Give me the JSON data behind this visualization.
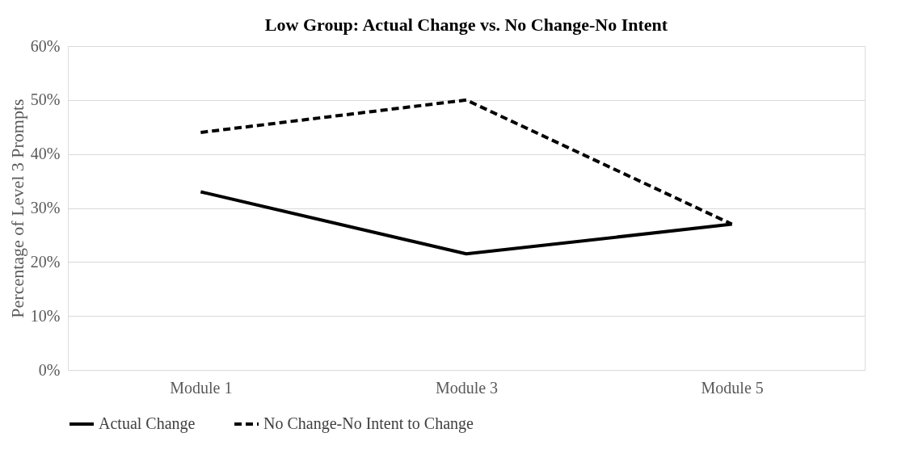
{
  "chart_data": {
    "type": "line",
    "title": "Low Group: Actual Change vs. No Change-No Intent",
    "ylabel": "Percentage of Level 3 Prompts",
    "categories": [
      "Module 1",
      "Module 3",
      "Module 5"
    ],
    "series": [
      {
        "name": "Actual Change",
        "color": "#000000",
        "line_style": "solid",
        "values": [
          33,
          21.5,
          27
        ]
      },
      {
        "name": "No Change-No Intent to Change",
        "color": "#000000",
        "line_style": "dashed",
        "values": [
          44,
          50,
          27
        ]
      }
    ],
    "ylim": [
      0,
      60
    ],
    "yticks": [
      {
        "value": 0,
        "label": "0%"
      },
      {
        "value": 10,
        "label": "10%"
      },
      {
        "value": 20,
        "label": "20%"
      },
      {
        "value": 30,
        "label": "30%"
      },
      {
        "value": 40,
        "label": "40%"
      },
      {
        "value": 50,
        "label": "50%"
      },
      {
        "value": 60,
        "label": "60%"
      }
    ],
    "grid": "y",
    "legend": "bottom",
    "marker": "none"
  }
}
